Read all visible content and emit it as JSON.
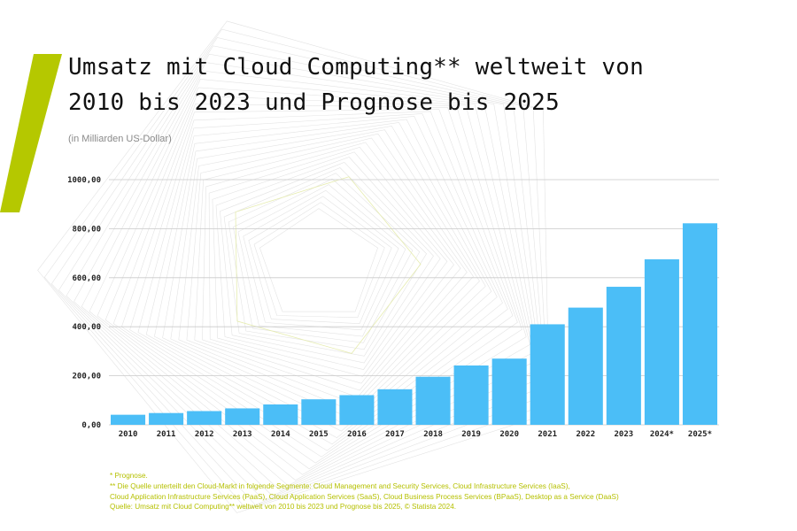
{
  "title_line1": "Umsatz mit Cloud Computing** weltweit von",
  "title_line2": "2010 bis 2023 und Prognose bis 2025",
  "subtitle": "(in Milliarden US-Dollar)",
  "colors": {
    "bar": "#4bbef7",
    "accent": "#b5c800",
    "grid": "#c9c9c9",
    "footnote": "#b5c000"
  },
  "footnotes": [
    "* Prognose.",
    "** Die Quelle unterteilt den Cloud-Markt in folgende Segmente: Cloud Management and Security Services, Cloud Infrastructure Services (IaaS),",
    "Cloud Application Infrastructure Services (PaaS), Cloud Application Services (SaaS), Cloud Business Process Services (BPaaS), Desktop as a Service (DaaS)",
    "Quelle: Umsatz mit Cloud Computing** weltweit von 2010 bis 2023 und Prognose bis 2025, © Statista 2024."
  ],
  "chart_data": {
    "type": "bar",
    "categories": [
      "2010",
      "2011",
      "2012",
      "2013",
      "2014",
      "2015",
      "2016",
      "2017",
      "2018",
      "2019",
      "2020",
      "2021",
      "2022",
      "2023",
      "2024*",
      "2025*"
    ],
    "values": [
      41,
      48,
      56,
      67,
      83,
      104,
      121,
      145,
      196,
      242,
      270,
      410,
      478,
      563,
      675,
      822
    ],
    "ylim": [
      0,
      1000
    ],
    "yticks": [
      0,
      200,
      400,
      600,
      800,
      1000
    ],
    "ytick_labels": [
      "0,00",
      "200,00",
      "400,00",
      "600,00",
      "800,00",
      "1000,00"
    ],
    "title": "Umsatz mit Cloud Computing** weltweit von 2010 bis 2023 und Prognose bis 2025",
    "ylabel": "(in Milliarden US-Dollar)",
    "grid": true
  }
}
